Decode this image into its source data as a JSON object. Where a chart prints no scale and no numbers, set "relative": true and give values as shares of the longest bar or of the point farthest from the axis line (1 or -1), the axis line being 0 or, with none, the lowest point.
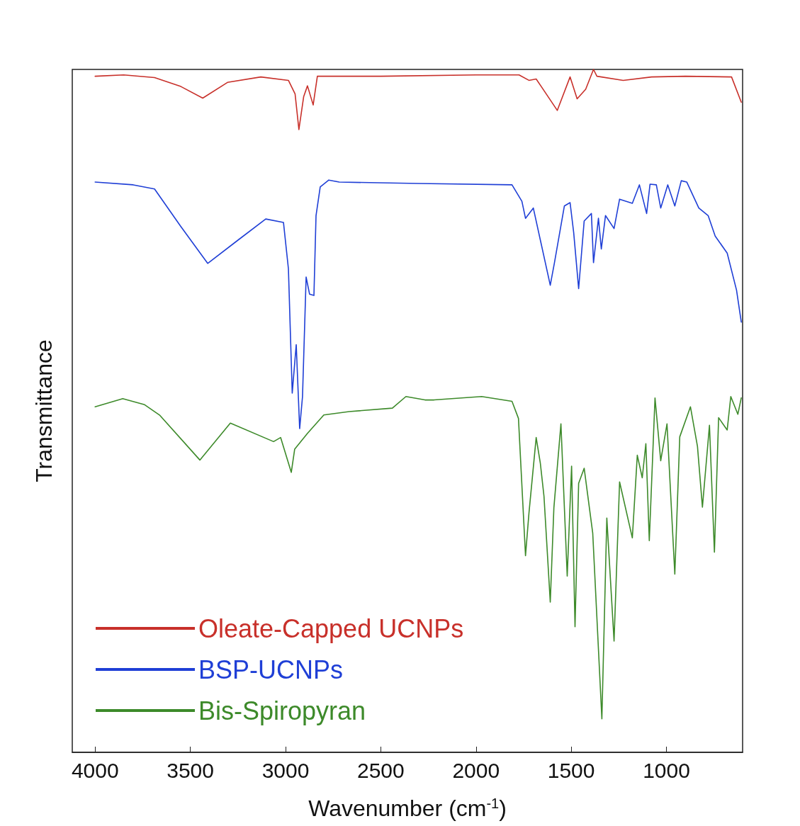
{
  "chart_data": {
    "type": "line",
    "relative": true,
    "xlabel": "Wavenumber (cm$^{-1}$)",
    "ylabel": "Transmittance",
    "xlim": [
      4120,
      600
    ],
    "xticks": [
      4000,
      3500,
      3000,
      2500,
      2000,
      1500,
      1000
    ],
    "grid": false,
    "legend": "bottom left",
    "marker": "none",
    "line_style": "solid",
    "series": [
      {
        "name": "Oleate-Capped UCNPs",
        "color": "#c8302a",
        "x": [
          4000,
          3850,
          3688,
          3550,
          3435,
          3305,
          3130,
          2985,
          2950,
          2930,
          2905,
          2885,
          2855,
          2833,
          2500,
          2000,
          1774,
          1722,
          1684,
          1573,
          1506,
          1469,
          1424,
          1383,
          1365,
          1227,
          1078,
          900,
          658,
          607
        ],
        "values": [
          0.99,
          0.992,
          0.988,
          0.975,
          0.958,
          0.981,
          0.989,
          0.984,
          0.964,
          0.912,
          0.96,
          0.976,
          0.948,
          0.99,
          0.99,
          0.992,
          0.992,
          0.984,
          0.986,
          0.94,
          0.989,
          0.957,
          0.971,
          1.0,
          0.99,
          0.984,
          0.989,
          0.99,
          0.989,
          0.952
        ]
      },
      {
        "name": "BSP-UCNPs",
        "color": "#1f3fd6",
        "x": [
          4000,
          3800,
          3688,
          3550,
          3409,
          3250,
          3104,
          3011,
          2985,
          2965,
          2944,
          2926,
          2911,
          2892,
          2874,
          2851,
          2840,
          2818,
          2773,
          2718,
          2300,
          1811,
          1759,
          1740,
          1699,
          1610,
          1588,
          1536,
          1506,
          1487,
          1461,
          1432,
          1394,
          1383,
          1357,
          1342,
          1320,
          1275,
          1246,
          1179,
          1142,
          1104,
          1086,
          1053,
          1030,
          993,
          956,
          922,
          893,
          830,
          781,
          744,
          681,
          632,
          607
        ],
        "values": [
          0.835,
          0.831,
          0.825,
          0.77,
          0.716,
          0.75,
          0.781,
          0.776,
          0.708,
          0.526,
          0.597,
          0.474,
          0.521,
          0.696,
          0.671,
          0.669,
          0.786,
          0.828,
          0.838,
          0.835,
          0.833,
          0.831,
          0.807,
          0.782,
          0.797,
          0.684,
          0.717,
          0.8,
          0.805,
          0.761,
          0.679,
          0.778,
          0.789,
          0.717,
          0.782,
          0.737,
          0.786,
          0.767,
          0.81,
          0.804,
          0.831,
          0.789,
          0.832,
          0.831,
          0.797,
          0.831,
          0.8,
          0.837,
          0.835,
          0.797,
          0.786,
          0.756,
          0.731,
          0.677,
          0.63
        ]
      },
      {
        "name": "Bis-Spiropyran",
        "color": "#3d8a2a",
        "x": [
          4000,
          3855,
          3740,
          3662,
          3450,
          3290,
          3063,
          3026,
          2970,
          2952,
          2885,
          2799,
          2666,
          2439,
          2368,
          2268,
          2220,
          1970,
          1811,
          1777,
          1740,
          1722,
          1684,
          1662,
          1643,
          1610,
          1591,
          1554,
          1521,
          1498,
          1480,
          1461,
          1432,
          1387,
          1339,
          1313,
          1275,
          1246,
          1179,
          1153,
          1127,
          1108,
          1090,
          1060,
          1030,
          997,
          956,
          930,
          874,
          837,
          811,
          774,
          748,
          726,
          681,
          662,
          625,
          607
        ],
        "values": [
          0.506,
          0.518,
          0.509,
          0.494,
          0.428,
          0.482,
          0.455,
          0.461,
          0.41,
          0.444,
          0.467,
          0.494,
          0.499,
          0.504,
          0.521,
          0.516,
          0.516,
          0.521,
          0.514,
          0.489,
          0.288,
          0.35,
          0.461,
          0.423,
          0.375,
          0.22,
          0.358,
          0.481,
          0.258,
          0.419,
          0.184,
          0.394,
          0.416,
          0.321,
          0.049,
          0.343,
          0.163,
          0.396,
          0.314,
          0.435,
          0.402,
          0.452,
          0.31,
          0.519,
          0.427,
          0.481,
          0.261,
          0.462,
          0.506,
          0.448,
          0.359,
          0.479,
          0.293,
          0.49,
          0.472,
          0.521,
          0.495,
          0.519
        ]
      }
    ]
  }
}
